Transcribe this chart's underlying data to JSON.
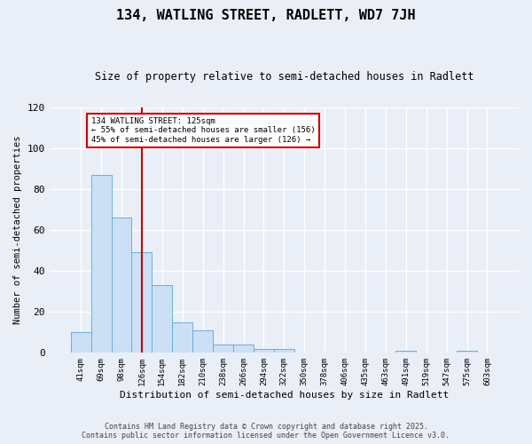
{
  "title": "134, WATLING STREET, RADLETT, WD7 7JH",
  "subtitle": "Size of property relative to semi-detached houses in Radlett",
  "xlabel": "Distribution of semi-detached houses by size in Radlett",
  "ylabel": "Number of semi-detached properties",
  "categories": [
    "41sqm",
    "69sqm",
    "98sqm",
    "126sqm",
    "154sqm",
    "182sqm",
    "210sqm",
    "238sqm",
    "266sqm",
    "294sqm",
    "322sqm",
    "350sqm",
    "378sqm",
    "406sqm",
    "435sqm",
    "463sqm",
    "491sqm",
    "519sqm",
    "547sqm",
    "575sqm",
    "603sqm"
  ],
  "values": [
    10,
    87,
    66,
    49,
    33,
    15,
    11,
    4,
    4,
    2,
    2,
    0,
    0,
    0,
    0,
    0,
    1,
    0,
    0,
    1,
    0
  ],
  "bar_color": "#cce0f5",
  "bar_edge_color": "#6aaed6",
  "vline_x": 3,
  "annotation_title": "134 WATLING STREET: 125sqm",
  "annotation_line1": "← 55% of semi-detached houses are smaller (156)",
  "annotation_line2": "45% of semi-detached houses are larger (126) →",
  "annotation_box_color": "#ffffff",
  "annotation_box_edge": "#cc0000",
  "vline_color": "#cc0000",
  "ylim": [
    0,
    120
  ],
  "yticks": [
    0,
    20,
    40,
    60,
    80,
    100,
    120
  ],
  "background_color": "#eaeef7",
  "grid_color": "#ffffff",
  "footer1": "Contains HM Land Registry data © Crown copyright and database right 2025.",
  "footer2": "Contains public sector information licensed under the Open Government Licence v3.0."
}
